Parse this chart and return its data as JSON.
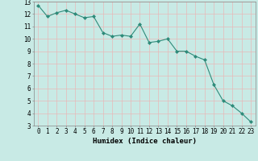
{
  "x": [
    0,
    1,
    2,
    3,
    4,
    5,
    6,
    7,
    8,
    9,
    10,
    11,
    12,
    13,
    14,
    15,
    16,
    17,
    18,
    19,
    20,
    21,
    22,
    23
  ],
  "y": [
    12.7,
    11.8,
    12.1,
    12.3,
    12.0,
    11.7,
    11.8,
    10.5,
    10.2,
    10.3,
    10.2,
    11.2,
    9.7,
    9.8,
    10.0,
    9.0,
    9.0,
    8.6,
    8.3,
    6.3,
    5.0,
    4.6,
    4.0,
    3.3
  ],
  "line_color": "#2e8b7a",
  "marker": "D",
  "markersize": 2.0,
  "linewidth": 0.8,
  "bg_color": "#c8eae5",
  "grid_color": "#e8b8b8",
  "xlabel": "Humidex (Indice chaleur)",
  "xlim": [
    -0.5,
    23.5
  ],
  "ylim": [
    3,
    13
  ],
  "yticks": [
    3,
    4,
    5,
    6,
    7,
    8,
    9,
    10,
    11,
    12,
    13
  ],
  "xticks": [
    0,
    1,
    2,
    3,
    4,
    5,
    6,
    7,
    8,
    9,
    10,
    11,
    12,
    13,
    14,
    15,
    16,
    17,
    18,
    19,
    20,
    21,
    22,
    23
  ],
  "xlabel_fontsize": 6.5,
  "tick_fontsize": 5.5
}
